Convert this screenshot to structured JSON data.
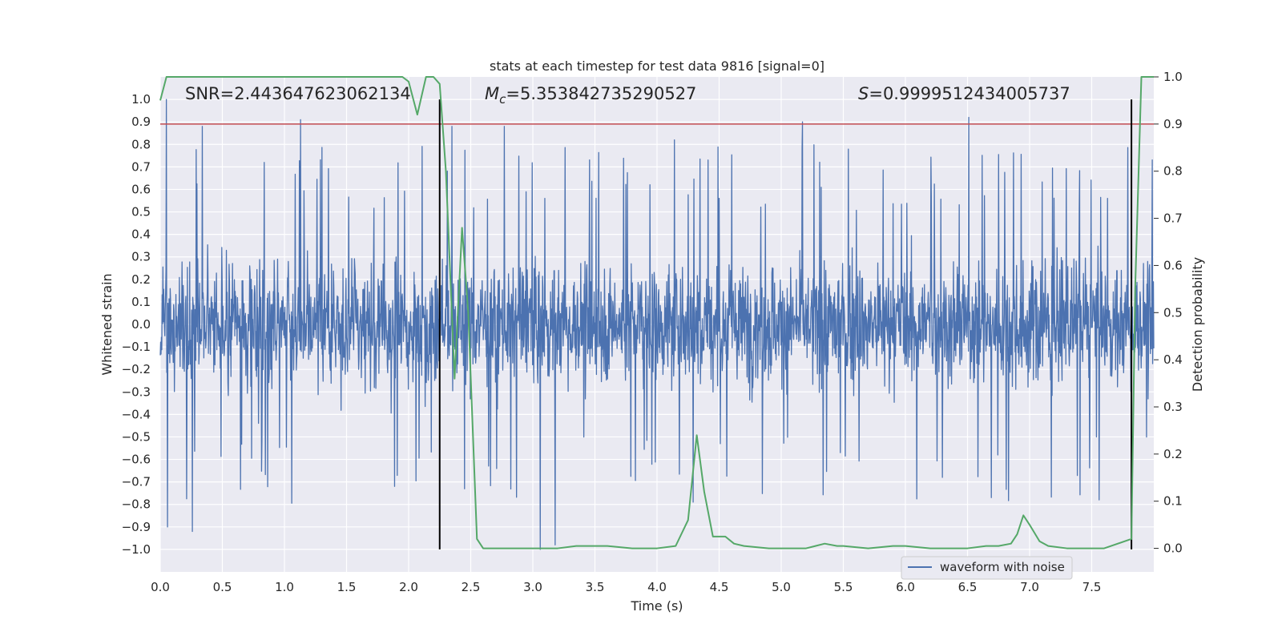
{
  "chart_data": {
    "type": "line",
    "title": "stats at each timestep for test data 9816 [signal=0]",
    "xlabel": "Time (s)",
    "ylabel_left": "Whitened strain",
    "ylabel_right": "Detection probability",
    "xlim": [
      0.0,
      8.0
    ],
    "ylim_left": [
      -1.1,
      1.1
    ],
    "ylim_right": [
      -0.05,
      1.0
    ],
    "x_ticks": [
      "0.0",
      "0.5",
      "1.0",
      "1.5",
      "2.0",
      "2.5",
      "3.0",
      "3.5",
      "4.0",
      "4.5",
      "5.0",
      "5.5",
      "6.0",
      "6.5",
      "7.0",
      "7.5"
    ],
    "x_tick_values": [
      0.0,
      0.5,
      1.0,
      1.5,
      2.0,
      2.5,
      3.0,
      3.5,
      4.0,
      4.5,
      5.0,
      5.5,
      6.0,
      6.5,
      7.0,
      7.5
    ],
    "y_left_ticks": [
      "1.0",
      "0.9",
      "0.8",
      "0.7",
      "0.6",
      "0.5",
      "0.4",
      "0.3",
      "0.2",
      "0.1",
      "0.0",
      "−0.1",
      "−0.2",
      "−0.3",
      "−0.4",
      "−0.5",
      "−0.6",
      "−0.7",
      "−0.8",
      "−0.9",
      "−1.0"
    ],
    "y_left_tick_values": [
      1.0,
      0.9,
      0.8,
      0.7,
      0.6,
      0.5,
      0.4,
      0.3,
      0.2,
      0.1,
      0.0,
      -0.1,
      -0.2,
      -0.3,
      -0.4,
      -0.5,
      -0.6,
      -0.7,
      -0.8,
      -0.9,
      -1.0
    ],
    "y_right_ticks": [
      "1.0",
      "0.9",
      "0.8",
      "0.7",
      "0.6",
      "0.5",
      "0.4",
      "0.3",
      "0.2",
      "0.1",
      "0.0"
    ],
    "y_right_tick_values": [
      1.0,
      0.9,
      0.8,
      0.7,
      0.6,
      0.5,
      0.4,
      0.3,
      0.2,
      0.1,
      0.0
    ],
    "annotations": {
      "snr": "SNR=2.443647623062134",
      "mc_symbol": "M",
      "mc_sub": "c",
      "mc_value": "=5.353842735290527",
      "s_symbol": "S",
      "s_value": "=0.9999512434005737"
    },
    "threshold": {
      "value": 0.9,
      "axis": "right",
      "color": "#c44e52"
    },
    "vertical_lines": [
      2.25,
      7.82
    ],
    "waveform": {
      "name": "waveform with noise",
      "color": "#4c72b0",
      "duration_s": 8.0,
      "typical_amplitude": 0.4,
      "peak_positive": 1.0,
      "peak_negative": -1.0,
      "notable_spikes": [
        {
          "t": 0.05,
          "v": 1.0
        },
        {
          "t": 0.06,
          "v": -0.9
        },
        {
          "t": 0.26,
          "v": -0.92
        },
        {
          "t": 0.34,
          "v": 0.88
        },
        {
          "t": 1.13,
          "v": 0.91
        },
        {
          "t": 2.35,
          "v": 0.88
        },
        {
          "t": 2.77,
          "v": 0.88
        },
        {
          "t": 3.06,
          "v": -1.0
        },
        {
          "t": 3.18,
          "v": -0.98
        },
        {
          "t": 4.14,
          "v": 0.82
        },
        {
          "t": 5.17,
          "v": 0.9
        },
        {
          "t": 6.51,
          "v": 0.92
        }
      ]
    },
    "probability": {
      "name": "detection probability",
      "color": "#55a868",
      "x": [
        0.0,
        0.05,
        0.1,
        0.5,
        1.0,
        1.5,
        1.95,
        2.0,
        2.07,
        2.14,
        2.2,
        2.25,
        2.3,
        2.37,
        2.43,
        2.48,
        2.55,
        2.6,
        2.65,
        2.8,
        3.0,
        3.2,
        3.35,
        3.45,
        3.6,
        3.8,
        4.0,
        4.15,
        4.25,
        4.32,
        4.38,
        4.45,
        4.55,
        4.62,
        4.7,
        4.9,
        5.2,
        5.35,
        5.45,
        5.5,
        5.7,
        5.9,
        6.0,
        6.2,
        6.5,
        6.65,
        6.75,
        6.85,
        6.9,
        6.95,
        7.0,
        7.08,
        7.15,
        7.3,
        7.5,
        7.6,
        7.82,
        7.85,
        7.9,
        7.95,
        8.0
      ],
      "y": [
        0.95,
        1.0,
        1.0,
        1.0,
        1.0,
        1.0,
        1.0,
        0.99,
        0.92,
        1.0,
        1.0,
        0.985,
        0.8,
        0.36,
        0.68,
        0.5,
        0.02,
        0.0,
        0.0,
        0.0,
        0.0,
        0.0,
        0.005,
        0.005,
        0.005,
        0.0,
        0.0,
        0.005,
        0.06,
        0.24,
        0.12,
        0.025,
        0.025,
        0.01,
        0.005,
        0.0,
        0.0,
        0.01,
        0.005,
        0.005,
        0.0,
        0.005,
        0.005,
        0.0,
        0.0,
        0.005,
        0.005,
        0.01,
        0.03,
        0.07,
        0.05,
        0.015,
        0.005,
        0.0,
        0.0,
        0.0,
        0.02,
        0.55,
        1.0,
        1.0,
        1.0
      ]
    },
    "legend": {
      "label": "waveform with noise",
      "location": "lower-right"
    }
  }
}
